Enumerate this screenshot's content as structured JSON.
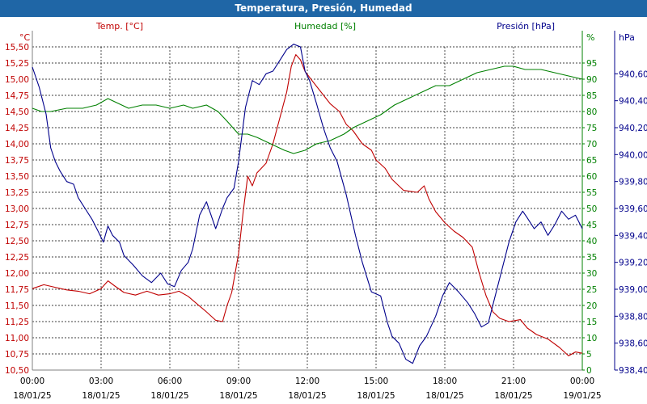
{
  "window": {
    "title": "Temperatura, Presión, Humedad"
  },
  "colors": {
    "temperature": "#c00000",
    "humidity": "#008000",
    "pressure": "#00008b",
    "grid": "#000000",
    "title_bg": "#1f66a6"
  },
  "chart_data": {
    "type": "line",
    "title": "Temperatura, Presión, Humedad",
    "grid": true,
    "axes": {
      "temperature": {
        "label": "Temp. [°C]",
        "unit": "°C",
        "range": [
          10.5,
          15.5
        ],
        "ticks": [
          "15,50",
          "15,25",
          "15,00",
          "14,75",
          "14,50",
          "14,25",
          "14,00",
          "13,75",
          "13,50",
          "13,25",
          "13,00",
          "12,75",
          "12,50",
          "12,25",
          "12,00",
          "11,75",
          "11,50",
          "11,25",
          "11,00",
          "10,75",
          "10,50"
        ]
      },
      "humidity": {
        "label": "Humedad [%]",
        "unit": "%",
        "range": [
          0,
          100
        ],
        "ticks": [
          "95",
          "90",
          "85",
          "80",
          "75",
          "70",
          "65",
          "60",
          "55",
          "50",
          "45",
          "40",
          "35",
          "30",
          "25",
          "20",
          "15",
          "10",
          "5",
          "0"
        ]
      },
      "pressure": {
        "label": "Presión [hPa]",
        "unit": "hPa",
        "range": [
          938.4,
          940.8
        ],
        "ticks": [
          "940,60",
          "940,40",
          "940,20",
          "940,00",
          "939,80",
          "939,60",
          "939,40",
          "939,20",
          "939,00",
          "938,80",
          "938,60",
          "938,40"
        ]
      },
      "x": {
        "range": [
          0,
          24
        ],
        "ticks": [
          {
            "time": "00:00",
            "date": "18/01/25"
          },
          {
            "time": "03:00",
            "date": "18/01/25"
          },
          {
            "time": "06:00",
            "date": "18/01/25"
          },
          {
            "time": "09:00",
            "date": "18/01/25"
          },
          {
            "time": "12:00",
            "date": "18/01/25"
          },
          {
            "time": "15:00",
            "date": "18/01/25"
          },
          {
            "time": "18:00",
            "date": "18/01/25"
          },
          {
            "time": "21:00",
            "date": "18/01/25"
          },
          {
            "time": "00:00",
            "date": "19/01/25"
          }
        ]
      }
    },
    "series": [
      {
        "name": "Temp. [°C]",
        "axis": "temperature",
        "points": [
          [
            0,
            11.76
          ],
          [
            0.5,
            11.82
          ],
          [
            1,
            11.78
          ],
          [
            1.5,
            11.74
          ],
          [
            2,
            11.72
          ],
          [
            2.5,
            11.68
          ],
          [
            3,
            11.76
          ],
          [
            3.3,
            11.88
          ],
          [
            3.6,
            11.8
          ],
          [
            4,
            11.7
          ],
          [
            4.5,
            11.66
          ],
          [
            5,
            11.72
          ],
          [
            5.5,
            11.66
          ],
          [
            6,
            11.68
          ],
          [
            6.4,
            11.72
          ],
          [
            6.8,
            11.64
          ],
          [
            7.2,
            11.52
          ],
          [
            7.6,
            11.4
          ],
          [
            8,
            11.27
          ],
          [
            8.3,
            11.25
          ],
          [
            8.5,
            11.5
          ],
          [
            8.7,
            11.7
          ],
          [
            9,
            12.3
          ],
          [
            9.2,
            12.95
          ],
          [
            9.4,
            13.5
          ],
          [
            9.6,
            13.35
          ],
          [
            9.8,
            13.55
          ],
          [
            10.2,
            13.7
          ],
          [
            10.5,
            14.0
          ],
          [
            10.8,
            14.4
          ],
          [
            11.1,
            14.8
          ],
          [
            11.3,
            15.2
          ],
          [
            11.5,
            15.38
          ],
          [
            11.7,
            15.3
          ],
          [
            11.9,
            15.12
          ],
          [
            12.2,
            14.98
          ],
          [
            12.6,
            14.8
          ],
          [
            13,
            14.62
          ],
          [
            13.4,
            14.5
          ],
          [
            13.7,
            14.3
          ],
          [
            14,
            14.2
          ],
          [
            14.4,
            14.0
          ],
          [
            14.8,
            13.9
          ],
          [
            15,
            13.75
          ],
          [
            15.4,
            13.62
          ],
          [
            15.7,
            13.45
          ],
          [
            16.2,
            13.28
          ],
          [
            16.8,
            13.25
          ],
          [
            17.1,
            13.35
          ],
          [
            17.3,
            13.15
          ],
          [
            17.6,
            12.95
          ],
          [
            18,
            12.78
          ],
          [
            18.4,
            12.65
          ],
          [
            18.8,
            12.55
          ],
          [
            19.2,
            12.4
          ],
          [
            19.5,
            12.0
          ],
          [
            19.8,
            11.65
          ],
          [
            20.1,
            11.4
          ],
          [
            20.4,
            11.3
          ],
          [
            20.8,
            11.25
          ],
          [
            21.3,
            11.28
          ],
          [
            21.6,
            11.15
          ],
          [
            22,
            11.05
          ],
          [
            22.5,
            10.98
          ],
          [
            23,
            10.85
          ],
          [
            23.4,
            10.72
          ],
          [
            23.7,
            10.78
          ],
          [
            24,
            10.76
          ]
        ]
      },
      {
        "name": "Humedad [%]",
        "axis": "humidity",
        "points": [
          [
            0,
            81
          ],
          [
            0.4,
            80
          ],
          [
            0.8,
            80
          ],
          [
            1.5,
            81
          ],
          [
            2.2,
            81
          ],
          [
            2.8,
            82
          ],
          [
            3.3,
            84
          ],
          [
            3.6,
            83
          ],
          [
            4.2,
            81
          ],
          [
            4.8,
            82
          ],
          [
            5.4,
            82
          ],
          [
            6,
            81
          ],
          [
            6.6,
            82
          ],
          [
            7,
            81
          ],
          [
            7.6,
            82
          ],
          [
            8.1,
            80
          ],
          [
            8.5,
            77
          ],
          [
            9,
            73
          ],
          [
            9.4,
            73
          ],
          [
            9.8,
            72
          ],
          [
            10.4,
            70
          ],
          [
            11,
            68
          ],
          [
            11.4,
            67
          ],
          [
            11.9,
            68
          ],
          [
            12.4,
            70
          ],
          [
            13,
            71
          ],
          [
            13.6,
            73
          ],
          [
            14,
            75
          ],
          [
            14.6,
            77
          ],
          [
            15.2,
            79
          ],
          [
            15.8,
            82
          ],
          [
            16.4,
            84
          ],
          [
            17,
            86
          ],
          [
            17.6,
            88
          ],
          [
            18.2,
            88
          ],
          [
            18.8,
            90
          ],
          [
            19.4,
            92
          ],
          [
            20,
            93
          ],
          [
            20.6,
            94
          ],
          [
            21,
            94
          ],
          [
            21.5,
            93
          ],
          [
            22.2,
            93
          ],
          [
            22.8,
            92
          ],
          [
            23.4,
            91
          ],
          [
            24,
            90
          ]
        ]
      },
      {
        "name": "Presión [hPa]",
        "axis": "pressure",
        "points": [
          [
            0,
            940.65
          ],
          [
            0.3,
            940.5
          ],
          [
            0.6,
            940.3
          ],
          [
            0.8,
            940.05
          ],
          [
            1,
            939.95
          ],
          [
            1.2,
            939.88
          ],
          [
            1.5,
            939.8
          ],
          [
            1.8,
            939.78
          ],
          [
            2,
            939.68
          ],
          [
            2.3,
            939.6
          ],
          [
            2.6,
            939.52
          ],
          [
            2.9,
            939.42
          ],
          [
            3.1,
            939.35
          ],
          [
            3.3,
            939.47
          ],
          [
            3.5,
            939.4
          ],
          [
            3.8,
            939.35
          ],
          [
            4,
            939.25
          ],
          [
            4.4,
            939.18
          ],
          [
            4.8,
            939.1
          ],
          [
            5.2,
            939.05
          ],
          [
            5.6,
            939.12
          ],
          [
            5.9,
            939.04
          ],
          [
            6.2,
            939.02
          ],
          [
            6.5,
            939.14
          ],
          [
            6.8,
            939.2
          ],
          [
            7,
            939.3
          ],
          [
            7.3,
            939.55
          ],
          [
            7.6,
            939.65
          ],
          [
            7.8,
            939.55
          ],
          [
            8,
            939.45
          ],
          [
            8.3,
            939.6
          ],
          [
            8.5,
            939.68
          ],
          [
            8.8,
            939.75
          ],
          [
            9,
            939.95
          ],
          [
            9.3,
            940.35
          ],
          [
            9.6,
            940.55
          ],
          [
            9.9,
            940.52
          ],
          [
            10.2,
            940.6
          ],
          [
            10.5,
            940.62
          ],
          [
            10.8,
            940.7
          ],
          [
            11.1,
            940.78
          ],
          [
            11.4,
            940.82
          ],
          [
            11.7,
            940.8
          ],
          [
            11.9,
            940.62
          ],
          [
            12.1,
            940.55
          ],
          [
            12.4,
            940.38
          ],
          [
            12.7,
            940.2
          ],
          [
            13,
            940.05
          ],
          [
            13.3,
            939.95
          ],
          [
            13.7,
            939.7
          ],
          [
            14.1,
            939.4
          ],
          [
            14.4,
            939.2
          ],
          [
            14.8,
            938.98
          ],
          [
            15.2,
            938.95
          ],
          [
            15.5,
            938.75
          ],
          [
            15.7,
            938.65
          ],
          [
            16,
            938.6
          ],
          [
            16.3,
            938.48
          ],
          [
            16.6,
            938.45
          ],
          [
            16.9,
            938.58
          ],
          [
            17.2,
            938.65
          ],
          [
            17.6,
            938.8
          ],
          [
            17.9,
            938.95
          ],
          [
            18.2,
            939.05
          ],
          [
            18.6,
            938.98
          ],
          [
            19,
            938.9
          ],
          [
            19.3,
            938.82
          ],
          [
            19.6,
            938.72
          ],
          [
            19.9,
            938.75
          ],
          [
            20.2,
            938.95
          ],
          [
            20.5,
            939.15
          ],
          [
            20.8,
            939.35
          ],
          [
            21.1,
            939.5
          ],
          [
            21.4,
            939.58
          ],
          [
            21.6,
            939.53
          ],
          [
            21.9,
            939.45
          ],
          [
            22.2,
            939.5
          ],
          [
            22.5,
            939.4
          ],
          [
            22.8,
            939.48
          ],
          [
            23.1,
            939.58
          ],
          [
            23.4,
            939.52
          ],
          [
            23.7,
            939.55
          ],
          [
            24,
            939.45
          ]
        ]
      }
    ]
  }
}
